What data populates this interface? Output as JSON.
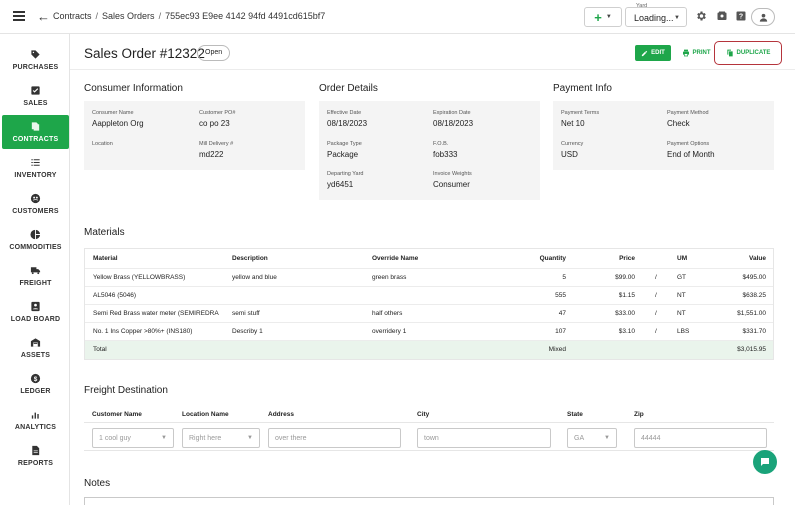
{
  "breadcrumb": {
    "items": [
      "Contracts",
      "Sales Orders",
      "755ec93 E9ee 4142 94fd 4491cd615bf7"
    ]
  },
  "topbar": {
    "yard_label": "Yard",
    "yard_value": "Loading...",
    "icons": [
      "settings-icon",
      "wallet-icon",
      "help-icon",
      "user-icon"
    ]
  },
  "sidebar": {
    "items": [
      {
        "label": "PURCHASES",
        "icon": "tag-icon"
      },
      {
        "label": "SALES",
        "icon": "checkbox-icon"
      },
      {
        "label": "CONTRACTS",
        "icon": "contract-icon",
        "active": true
      },
      {
        "label": "INVENTORY",
        "icon": "list-icon"
      },
      {
        "label": "CUSTOMERS",
        "icon": "customers-icon"
      },
      {
        "label": "COMMODITIES",
        "icon": "pie-icon"
      },
      {
        "label": "FREIGHT",
        "icon": "truck-icon"
      },
      {
        "label": "LOAD BOARD",
        "icon": "board-icon"
      },
      {
        "label": "ASSETS",
        "icon": "warehouse-icon"
      },
      {
        "label": "LEDGER",
        "icon": "dollar-icon"
      },
      {
        "label": "ANALYTICS",
        "icon": "bar-chart-icon"
      },
      {
        "label": "REPORTS",
        "icon": "report-icon"
      }
    ]
  },
  "header": {
    "title": "Sales Order #12322",
    "status": "Open",
    "edit_label": "EDIT",
    "print_label": "PRINT",
    "duplicate_label": "DUPLICATE"
  },
  "consumer": {
    "title": "Consumer Information",
    "name_label": "Consumer Name",
    "name": "Aappleton Org",
    "po_label": "Customer PO#",
    "po": "co po 23",
    "location_label": "Location",
    "location": "",
    "mill_label": "Mill Delivery #",
    "mill": "md222"
  },
  "order": {
    "title": "Order Details",
    "effective_label": "Effective Date",
    "effective": "08/18/2023",
    "expiration_label": "Expiration Date",
    "expiration": "08/18/2023",
    "package_label": "Package Type",
    "package": "Package",
    "fob_label": "F.O.B.",
    "fob": "fob333",
    "yard_label": "Departing Yard",
    "yard": "yd6451",
    "weights_label": "Invoice Weights",
    "weights": "Consumer"
  },
  "payment": {
    "title": "Payment Info",
    "terms_label": "Payment Terms",
    "terms": "Net 10",
    "method_label": "Payment Method",
    "method": "Check",
    "currency_label": "Currency",
    "currency": "USD",
    "options_label": "Payment Options",
    "options": "End of Month"
  },
  "materials": {
    "title": "Materials",
    "columns": [
      "Material",
      "Description",
      "Override Name",
      "Quantity",
      "Price",
      "UM",
      "Value"
    ],
    "rows": [
      {
        "material": "Yellow Brass (YELLOWBRASS)",
        "description": "yellow and blue",
        "override": "green brass",
        "quantity": "5",
        "price": "$99.00",
        "slash": "/",
        "um": "GT",
        "value": "$495.00"
      },
      {
        "material": "AL5046 (5046)",
        "description": "",
        "override": "",
        "quantity": "555",
        "price": "$1.15",
        "slash": "/",
        "um": "NT",
        "value": "$638.25"
      },
      {
        "material": "Semi Red Brass water meter (SEMIREDRA",
        "description": "semi stuff",
        "override": "half others",
        "quantity": "47",
        "price": "$33.00",
        "slash": "/",
        "um": "NT",
        "value": "$1,551.00"
      },
      {
        "material": "No. 1 Ins Copper >80%+ (INS180)",
        "description": "Describy 1",
        "override": "overridery 1",
        "quantity": "107",
        "price": "$3.10",
        "slash": "/",
        "um": "LBS",
        "value": "$331.70"
      }
    ],
    "total": {
      "label": "Total",
      "quantity": "Mixed",
      "value": "$3,015.95"
    }
  },
  "freight": {
    "title": "Freight Destination",
    "columns": [
      "Customer Name",
      "Location Name",
      "Address",
      "City",
      "State",
      "Zip"
    ],
    "placeholders": [
      "1 cool guy",
      "Right here",
      "over there",
      "town",
      "GA",
      "44444"
    ]
  },
  "notes": {
    "title": "Notes"
  }
}
